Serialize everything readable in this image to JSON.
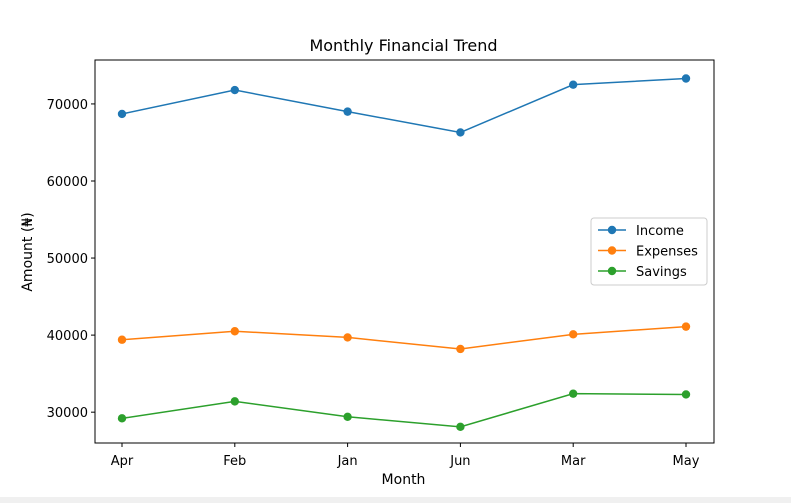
{
  "chart_data": {
    "type": "line",
    "title": "Monthly Financial Trend",
    "xlabel": "Month",
    "ylabel": "Amount (₦)",
    "categories": [
      "Apr",
      "Feb",
      "Jan",
      "Jun",
      "Mar",
      "May"
    ],
    "ylim": [
      26000,
      75700
    ],
    "yticks": [
      30000,
      40000,
      50000,
      60000,
      70000
    ],
    "grid": false,
    "legend_position": "center-right",
    "series": [
      {
        "name": "Income",
        "color": "#1f77b4",
        "marker": "circle",
        "values": [
          68700,
          71800,
          69000,
          66300,
          72500,
          73300
        ]
      },
      {
        "name": "Expenses",
        "color": "#ff7f0e",
        "marker": "circle",
        "values": [
          39400,
          40500,
          39700,
          38200,
          40100,
          41100
        ]
      },
      {
        "name": "Savings",
        "color": "#2ca02c",
        "marker": "circle",
        "values": [
          29200,
          31400,
          29400,
          28100,
          32400,
          32300
        ]
      }
    ]
  }
}
